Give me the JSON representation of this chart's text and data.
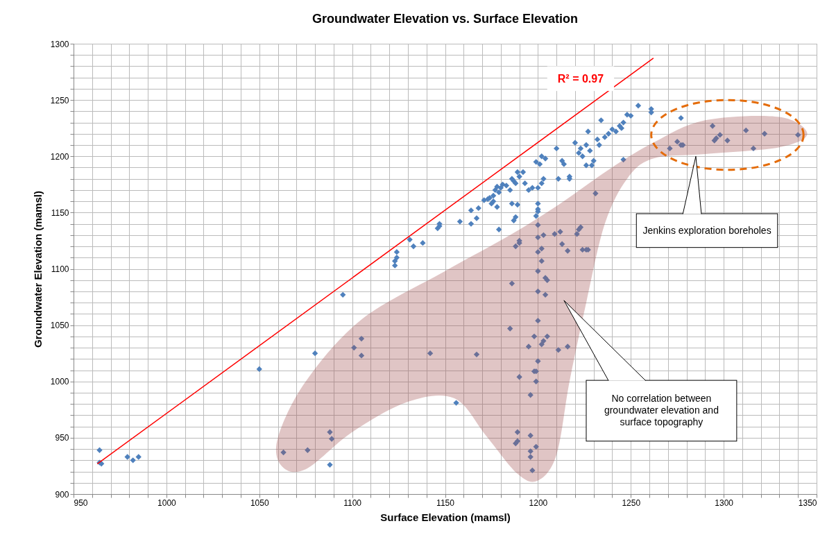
{
  "chart_data": {
    "type": "scatter",
    "title": "Groundwater Elevation vs. Surface Elevation",
    "xlabel": "Surface Elevation (mamsl)",
    "ylabel": "Groundwater Elevation (mamsl)",
    "xlim": [
      950,
      1350
    ],
    "ylim": [
      900,
      1300
    ],
    "xticks": [
      950,
      {
        "value": 960,
        "label": null
      },
      {
        "value": 970,
        "label": null
      },
      {
        "value": 980,
        "label": null
      },
      {
        "value": 990,
        "label": null
      },
      1000,
      {
        "value": 1010,
        "label": null
      },
      {
        "value": 1020,
        "label": null
      },
      {
        "value": 1030,
        "label": null
      },
      {
        "value": 1040,
        "label": null
      },
      1050,
      {
        "value": 1060,
        "label": null
      },
      {
        "value": 1070,
        "label": null
      },
      {
        "value": 1080,
        "label": null
      },
      {
        "value": 1090,
        "label": null
      },
      1100,
      {
        "value": 1110,
        "label": null
      },
      {
        "value": 1120,
        "label": null
      },
      {
        "value": 1130,
        "label": null
      },
      {
        "value": 1140,
        "label": null
      },
      1150,
      {
        "value": 1160,
        "label": null
      },
      {
        "value": 1170,
        "label": null
      },
      {
        "value": 1180,
        "label": null
      },
      {
        "value": 1190,
        "label": null
      },
      1200,
      {
        "value": 1210,
        "label": null
      },
      {
        "value": 1220,
        "label": null
      },
      {
        "value": 1230,
        "label": null
      },
      {
        "value": 1240,
        "label": null
      },
      1250,
      {
        "value": 1260,
        "label": null
      },
      {
        "value": 1270,
        "label": null
      },
      {
        "value": 1280,
        "label": null
      },
      {
        "value": 1290,
        "label": null
      },
      1300,
      {
        "value": 1310,
        "label": null
      },
      {
        "value": 1320,
        "label": null
      },
      {
        "value": 1330,
        "label": null
      },
      {
        "value": 1340,
        "label": null
      },
      1350
    ],
    "yticks": [
      900,
      {
        "value": 910,
        "label": null
      },
      {
        "value": 920,
        "label": null
      },
      {
        "value": 930,
        "label": null
      },
      {
        "value": 940,
        "label": null
      },
      950,
      {
        "value": 960,
        "label": null
      },
      {
        "value": 970,
        "label": null
      },
      {
        "value": 980,
        "label": null
      },
      {
        "value": 990,
        "label": null
      },
      1000,
      {
        "value": 1010,
        "label": null
      },
      {
        "value": 1020,
        "label": null
      },
      {
        "value": 1030,
        "label": null
      },
      {
        "value": 1040,
        "label": null
      },
      1050,
      {
        "value": 1060,
        "label": null
      },
      {
        "value": 1070,
        "label": null
      },
      {
        "value": 1080,
        "label": null
      },
      {
        "value": 1090,
        "label": null
      },
      1100,
      {
        "value": 1110,
        "label": null
      },
      {
        "value": 1120,
        "label": null
      },
      {
        "value": 1130,
        "label": null
      },
      {
        "value": 1140,
        "label": null
      },
      1150,
      {
        "value": 1160,
        "label": null
      },
      {
        "value": 1170,
        "label": null
      },
      {
        "value": 1180,
        "label": null
      },
      {
        "value": 1190,
        "label": null
      },
      1200,
      {
        "value": 1210,
        "label": null
      },
      {
        "value": 1220,
        "label": null
      },
      {
        "value": 1230,
        "label": null
      },
      {
        "value": 1240,
        "label": null
      },
      1250,
      {
        "value": 1260,
        "label": null
      },
      {
        "value": 1270,
        "label": null
      },
      {
        "value": 1280,
        "label": null
      },
      {
        "value": 1290,
        "label": null
      },
      1300
    ],
    "grid": true,
    "annotations": [
      "R² = 0.97",
      "Jenkins exploration boreholes",
      "No correlation between groundwater elevation and surface topography"
    ],
    "series": [
      {
        "color": "#4f81bd",
        "marker": "diamond",
        "x": [
          964,
          964,
          965,
          979,
          982,
          985,
          1050,
          1080,
          1095,
          1123,
          1123,
          1124,
          1124,
          1131,
          1133,
          1138,
          1146,
          1147,
          1147,
          1158,
          1164,
          1164,
          1167,
          1168,
          1171,
          1173,
          1174,
          1175,
          1176,
          1177,
          1178,
          1179,
          1180,
          1181,
          1183,
          1176,
          1178,
          1185,
          1186,
          1187,
          1188,
          1189,
          1190,
          1192,
          1193,
          1195,
          1197,
          1189,
          1186,
          1199,
          1201,
          1202,
          1204,
          1200,
          1202,
          1203,
          1210,
          1211,
          1213,
          1214,
          1217,
          1220,
          1222,
          1223,
          1224,
          1226,
          1227,
          1228,
          1229,
          1230,
          1232,
          1233,
          1234,
          1236,
          1238,
          1240,
          1242,
          1244,
          1245,
          1246,
          1248,
          1250,
          1254,
          1261,
          1261,
          1277,
          1063,
          1076,
          1088,
          1088,
          1089,
          1101,
          1105,
          1105,
          1142,
          1156,
          1167,
          1179,
          1185,
          1186,
          1187,
          1188,
          1188,
          1188,
          1189,
          1189,
          1190,
          1190,
          1190,
          1195,
          1196,
          1196,
          1196,
          1196,
          1197,
          1198,
          1198,
          1199,
          1199,
          1199,
          1199,
          1200,
          1200,
          1200,
          1200,
          1200,
          1200,
          1200,
          1200,
          1200,
          1200,
          1202,
          1202,
          1202,
          1203,
          1203,
          1204,
          1204,
          1205,
          1205,
          1209,
          1211,
          1213,
          1212,
          1216,
          1216,
          1217,
          1221,
          1222,
          1223,
          1224,
          1226,
          1227,
          1226,
          1231,
          1246,
          1271,
          1275,
          1277,
          1278,
          1294,
          1295,
          1296,
          1298,
          1302,
          1312,
          1316,
          1322,
          1340
        ],
        "values": [
          939,
          928,
          927,
          933,
          930,
          933,
          1011,
          1025,
          1077,
          1103,
          1107,
          1110,
          1115,
          1126,
          1120,
          1123,
          1136,
          1138,
          1140,
          1142,
          1140,
          1152,
          1145,
          1154,
          1161,
          1162,
          1163,
          1158,
          1165,
          1170,
          1173,
          1168,
          1172,
          1175,
          1174,
          1160,
          1155,
          1170,
          1180,
          1178,
          1176,
          1186,
          1182,
          1186,
          1176,
          1170,
          1172,
          1157,
          1158,
          1195,
          1193,
          1200,
          1198,
          1172,
          1176,
          1180,
          1207,
          1180,
          1196,
          1193,
          1182,
          1212,
          1203,
          1207,
          1200,
          1210,
          1222,
          1205,
          1192,
          1196,
          1215,
          1210,
          1232,
          1217,
          1220,
          1224,
          1222,
          1227,
          1225,
          1230,
          1237,
          1236,
          1245,
          1242,
          1239,
          1234,
          937,
          939,
          955,
          926,
          949,
          1030,
          1038,
          1023,
          1025,
          981,
          1024,
          1135,
          1047,
          1087,
          1143,
          1146,
          1120,
          945,
          947,
          955,
          1125,
          1123,
          1004,
          1031,
          988,
          933,
          938,
          952,
          921,
          1009,
          1040,
          1009,
          1000,
          942,
          1147,
          1153,
          1158,
          1151,
          1139,
          1128,
          1115,
          1098,
          1080,
          1054,
          1018,
          1033,
          1118,
          1107,
          1130,
          1036,
          1077,
          1092,
          1090,
          1040,
          1131,
          1028,
          1122,
          1133,
          1116,
          1031,
          1180,
          1131,
          1135,
          1137,
          1117,
          1117,
          1117,
          1192,
          1167,
          1197,
          1207,
          1213,
          1210,
          1210,
          1227,
          1214,
          1216,
          1219,
          1214,
          1223,
          1207,
          1220,
          1219
        ]
      },
      {
        "type": "line",
        "color": "#ff0000",
        "x": [
          963,
          1262
        ],
        "values": [
          927,
          1287
        ]
      }
    ]
  }
}
